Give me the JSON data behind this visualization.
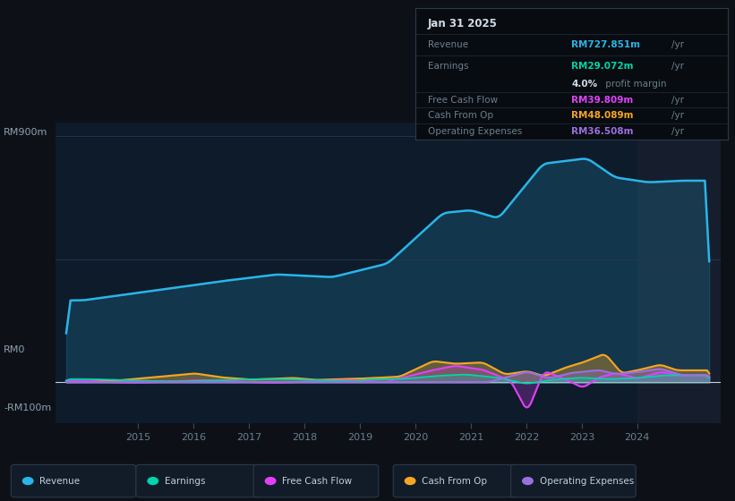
{
  "bg_color": "#0d1117",
  "plot_bg_color": "#0d1b2a",
  "ylabel_top": "RM900m",
  "ylabel_zero": "RM0",
  "ylabel_bottom": "-RM100m",
  "x_ticks": [
    2015,
    2016,
    2017,
    2018,
    2019,
    2020,
    2021,
    2022,
    2023,
    2024
  ],
  "colors": {
    "revenue": "#29b5e8",
    "earnings": "#00d4aa",
    "free_cash_flow": "#e040fb",
    "cash_from_op": "#f5a623",
    "operating_expenses": "#9c6fde"
  },
  "info_box": {
    "date": "Jan 31 2025",
    "revenue_label": "Revenue",
    "revenue_value": "RM727.851m",
    "revenue_color": "#29b5e8",
    "earnings_label": "Earnings",
    "earnings_value": "RM29.072m",
    "earnings_color": "#00d4aa",
    "profit_pct": "4.0%",
    "profit_text": " profit margin",
    "fcf_label": "Free Cash Flow",
    "fcf_value": "RM39.809m",
    "fcf_color": "#e040fb",
    "cashop_label": "Cash From Op",
    "cashop_value": "RM48.089m",
    "cashop_color": "#f5a623",
    "opex_label": "Operating Expenses",
    "opex_value": "RM36.508m",
    "opex_color": "#9c6fde"
  },
  "legend": [
    {
      "label": "Revenue",
      "color": "#29b5e8"
    },
    {
      "label": "Earnings",
      "color": "#00d4aa"
    },
    {
      "label": "Free Cash Flow",
      "color": "#e040fb"
    },
    {
      "label": "Cash From Op",
      "color": "#f5a623"
    },
    {
      "label": "Operating Expenses",
      "color": "#9c6fde"
    }
  ],
  "ylim": [
    -150,
    950
  ],
  "xlim": [
    2013.5,
    2025.5
  ]
}
